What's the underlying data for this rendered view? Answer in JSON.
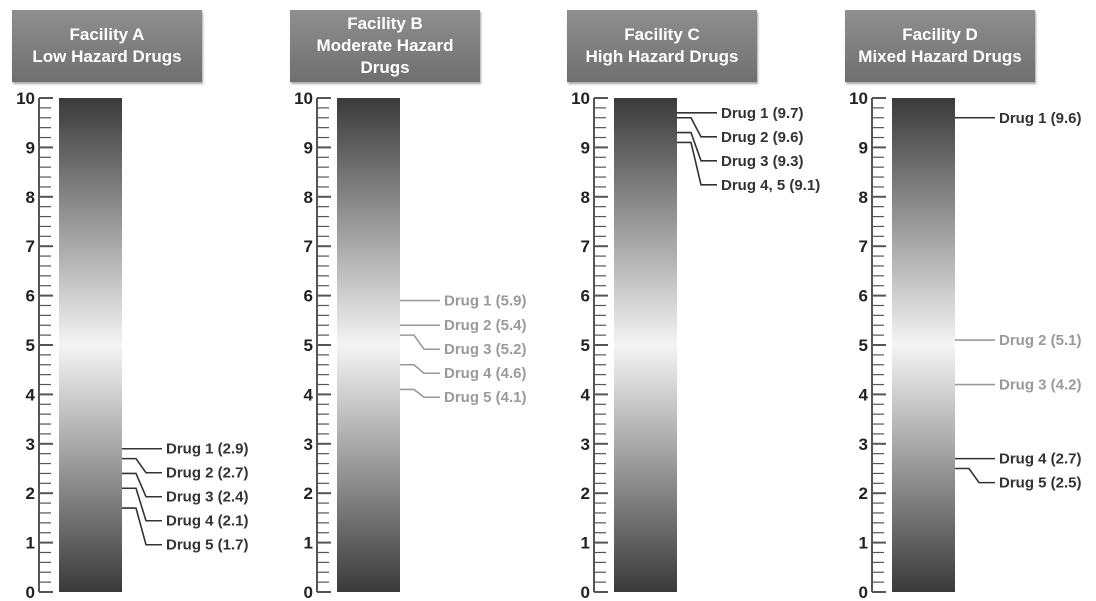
{
  "colors": {
    "header_bg": "#7f7f7f",
    "header_text": "#ffffff",
    "bar_dark": "#3a3a3a",
    "bar_light": "#f4f4f4",
    "label_dark": "#333333",
    "label_light": "#9a9a9a"
  },
  "chart_data": [
    {
      "type": "scale",
      "title_line1": "Facility A",
      "title_line2": "Low Hazard Drugs",
      "ylim": [
        0,
        10
      ],
      "ticks": [
        "0",
        "1",
        "2",
        "3",
        "4",
        "5",
        "6",
        "7",
        "8",
        "9",
        "10"
      ],
      "markers": [
        {
          "label": "Drug 1 (2.9)",
          "value": 2.9
        },
        {
          "label": "Drug 2 (2.7)",
          "value": 2.7
        },
        {
          "label": "Drug 3 (2.4)",
          "value": 2.4
        },
        {
          "label": "Drug 4 (2.1)",
          "value": 2.1
        },
        {
          "label": "Drug 5 (1.7)",
          "value": 1.7
        }
      ]
    },
    {
      "type": "scale",
      "title_line1": "Facility B",
      "title_line2": "Moderate Hazard Drugs",
      "ylim": [
        0,
        10
      ],
      "ticks": [
        "0",
        "1",
        "2",
        "3",
        "4",
        "5",
        "6",
        "7",
        "8",
        "9",
        "10"
      ],
      "markers": [
        {
          "label": "Drug 1 (5.9)",
          "value": 5.9
        },
        {
          "label": "Drug 2 (5.4)",
          "value": 5.4
        },
        {
          "label": "Drug 3 (5.2)",
          "value": 5.2
        },
        {
          "label": "Drug 4 (4.6)",
          "value": 4.6
        },
        {
          "label": "Drug 5 (4.1)",
          "value": 4.1
        }
      ]
    },
    {
      "type": "scale",
      "title_line1": "Facility C",
      "title_line2": "High Hazard Drugs",
      "ylim": [
        0,
        10
      ],
      "ticks": [
        "0",
        "1",
        "2",
        "3",
        "4",
        "5",
        "6",
        "7",
        "8",
        "9",
        "10"
      ],
      "markers": [
        {
          "label": "Drug 1 (9.7)",
          "value": 9.7
        },
        {
          "label": "Drug 2 (9.6)",
          "value": 9.6
        },
        {
          "label": "Drug 3 (9.3)",
          "value": 9.3
        },
        {
          "label": "Drug 4, 5 (9.1)",
          "value": 9.1
        }
      ]
    },
    {
      "type": "scale",
      "title_line1": "Facility D",
      "title_line2": "Mixed Hazard Drugs",
      "ylim": [
        0,
        10
      ],
      "ticks": [
        "0",
        "1",
        "2",
        "3",
        "4",
        "5",
        "6",
        "7",
        "8",
        "9",
        "10"
      ],
      "markers": [
        {
          "label": "Drug 1 (9.6)",
          "value": 9.6
        },
        {
          "label": "Drug 2 (5.1)",
          "value": 5.1
        },
        {
          "label": "Drug 3 (4.2)",
          "value": 4.2
        },
        {
          "label": "Drug 4 (2.7)",
          "value": 2.7
        },
        {
          "label": "Drug 5 (2.5)",
          "value": 2.5
        }
      ]
    }
  ]
}
